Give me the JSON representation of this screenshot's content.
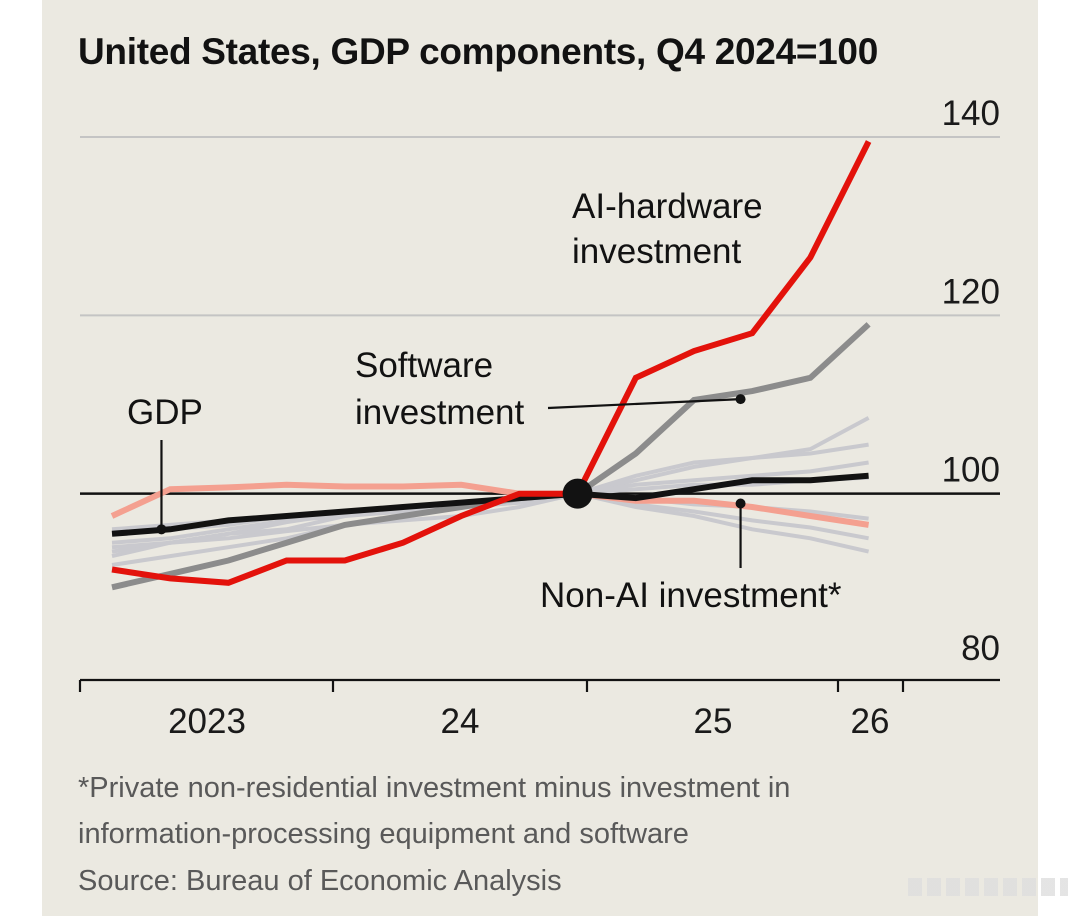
{
  "colors": {
    "background": "#ebe9e1",
    "ai_hardware": "#e3120b",
    "software": "#8c8c8c",
    "non_ai": "#f4a090",
    "gdp": "#121212",
    "other_components": "#c9c9ce",
    "gridline": "#c4c4c4",
    "baseline": "#121212"
  },
  "chart_data": {
    "type": "line",
    "title": "United States, GDP components, Q4 2024=100",
    "y_ticks": [
      "140",
      "120",
      "100",
      "80"
    ],
    "ylim": [
      80,
      140
    ],
    "x_ticks": [
      "2023",
      "24",
      "25",
      "26"
    ],
    "x": [
      "2022 Q4",
      "2023 Q1",
      "2023 Q2",
      "2023 Q3",
      "2023 Q4",
      "2024 Q1",
      "2024 Q2",
      "2024 Q3",
      "2024 Q4",
      "2025 Q1",
      "2025 Q2",
      "2025 Q3",
      "2025 Q4",
      "2026 Q1"
    ],
    "index_point": {
      "x": "2024 Q4",
      "y": 100
    },
    "annotations": {
      "ai_hardware": [
        "AI-hardware",
        "investment"
      ],
      "software": [
        "Software",
        "investment"
      ],
      "gdp": "GDP",
      "non_ai": "Non-AI investment*"
    },
    "series": [
      {
        "key": "grey1",
        "values": [
          93.5,
          94.5,
          95.5,
          96.8,
          97.8,
          98.5,
          99.0,
          99.5,
          100,
          101.5,
          103.0,
          104.0,
          105.0,
          108.5
        ]
      },
      {
        "key": "grey2",
        "values": [
          94.5,
          95.0,
          96.0,
          97.0,
          97.5,
          98.0,
          98.5,
          99.0,
          100,
          102.0,
          103.5,
          104.0,
          104.5,
          105.5
        ]
      },
      {
        "key": "grey3",
        "values": [
          93.0,
          94.5,
          95.0,
          95.8,
          96.5,
          97.0,
          97.5,
          98.5,
          100,
          101.0,
          101.5,
          102.0,
          102.5,
          103.5
        ]
      },
      {
        "key": "grey4",
        "values": [
          95.5,
          96.0,
          96.5,
          97.5,
          98.0,
          98.5,
          99.0,
          99.5,
          100,
          100.5,
          101.0,
          101.0,
          101.5,
          101.8
        ]
      },
      {
        "key": "grey5",
        "values": [
          92.0,
          93.0,
          94.0,
          95.0,
          96.5,
          97.5,
          98.5,
          99.0,
          100,
          99.5,
          98.8,
          98.5,
          98.0,
          97.2
        ]
      },
      {
        "key": "grey6",
        "values": [
          94.0,
          94.5,
          95.5,
          96.0,
          97.5,
          98.5,
          99.0,
          99.5,
          100,
          98.8,
          98.0,
          97.0,
          96.2,
          95.0
        ]
      },
      {
        "key": "grey7",
        "values": [
          96.0,
          96.5,
          97.0,
          97.5,
          98.0,
          98.5,
          98.8,
          99.2,
          100,
          98.5,
          97.5,
          96.0,
          95.0,
          93.5
        ]
      },
      {
        "key": "non_ai",
        "values": [
          97.5,
          100.5,
          100.7,
          101.0,
          100.8,
          100.8,
          101.0,
          100.0,
          100,
          99.2,
          99.2,
          98.5,
          97.5,
          96.5
        ]
      },
      {
        "key": "software",
        "values": [
          89.5,
          91.0,
          92.5,
          94.5,
          96.5,
          97.5,
          98.5,
          99.5,
          100,
          104.5,
          110.5,
          111.5,
          113.0,
          119.0
        ]
      },
      {
        "key": "gdp",
        "values": [
          95.5,
          96.0,
          97.0,
          97.5,
          98.0,
          98.5,
          99.0,
          99.5,
          100,
          99.5,
          100.5,
          101.5,
          101.5,
          102.0
        ]
      },
      {
        "key": "ai_hardware",
        "values": [
          91.5,
          90.5,
          90.0,
          92.5,
          92.5,
          94.5,
          97.5,
          100.0,
          100,
          113.0,
          116.0,
          118.0,
          126.5,
          139.5
        ]
      }
    ]
  },
  "footnote": [
    "*Private non-residential investment minus investment in",
    "information-processing equipment and software"
  ],
  "source": "Source: Bureau of Economic Analysis"
}
